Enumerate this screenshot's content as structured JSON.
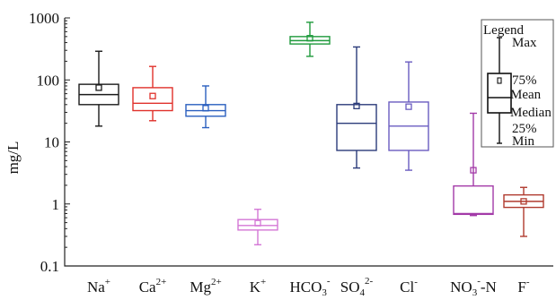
{
  "chart_data": {
    "type": "box",
    "ylabel": "mg/L",
    "yscale": "log",
    "ylim": [
      0.1,
      1000
    ],
    "y_ticks": [
      "0.1",
      "1",
      "10",
      "100",
      "1000"
    ],
    "grid": false,
    "legend_placement": "top-right",
    "categories": [
      {
        "main": "Na",
        "sup": "+"
      },
      {
        "main": "Ca",
        "sup": "2+"
      },
      {
        "main": "Mg",
        "sup": "2+"
      },
      {
        "main": "K",
        "sup": "+"
      },
      {
        "main": "HCO",
        "sub": "3",
        "sup": "-"
      },
      {
        "main": "SO",
        "sub": "4",
        "sup": "2-"
      },
      {
        "main": "Cl",
        "sup": "-"
      },
      {
        "main": "NO",
        "sub": "3",
        "sup": "-",
        "after": "-N"
      },
      {
        "main": "F",
        "sup": "-"
      }
    ],
    "boxes": [
      {
        "min": 18,
        "q1": 40,
        "median": 58,
        "q3": 85,
        "max": 290,
        "mean": 75,
        "color": "#1a1a1a"
      },
      {
        "min": 22,
        "q1": 32,
        "median": 42,
        "q3": 75,
        "max": 165,
        "mean": 55,
        "color": "#e0312b"
      },
      {
        "min": 17,
        "q1": 26,
        "median": 32,
        "q3": 40,
        "max": 80,
        "mean": 35,
        "color": "#2a5fbf"
      },
      {
        "min": 0.22,
        "q1": 0.38,
        "median": 0.45,
        "q3": 0.56,
        "max": 0.82,
        "mean": 0.49,
        "color": "#d477d6"
      },
      {
        "min": 240,
        "q1": 380,
        "median": 430,
        "q3": 500,
        "max": 850,
        "mean": 470,
        "color": "#1f9a3c"
      },
      {
        "min": 3.8,
        "q1": 7.3,
        "median": 20,
        "q3": 40,
        "max": 340,
        "mean": 38,
        "color": "#2b3b7a"
      },
      {
        "min": 3.5,
        "q1": 7.3,
        "median": 18,
        "q3": 44,
        "max": 195,
        "mean": 37,
        "color": "#6a5cc0"
      },
      {
        "min": 0.65,
        "q1": 0.68,
        "median": 0.7,
        "q3": 1.95,
        "max": 29,
        "mean": 3.5,
        "color": "#a33aa8"
      },
      {
        "min": 0.3,
        "q1": 0.88,
        "median": 1.1,
        "q3": 1.4,
        "max": 1.85,
        "mean": 1.1,
        "color": "#b03a2e"
      }
    ],
    "legend": {
      "title": "Legend",
      "labels": {
        "max": "Max",
        "q3": "75%",
        "mean": "Mean",
        "median": "Median",
        "q1": "25%",
        "min": "Min"
      }
    }
  }
}
